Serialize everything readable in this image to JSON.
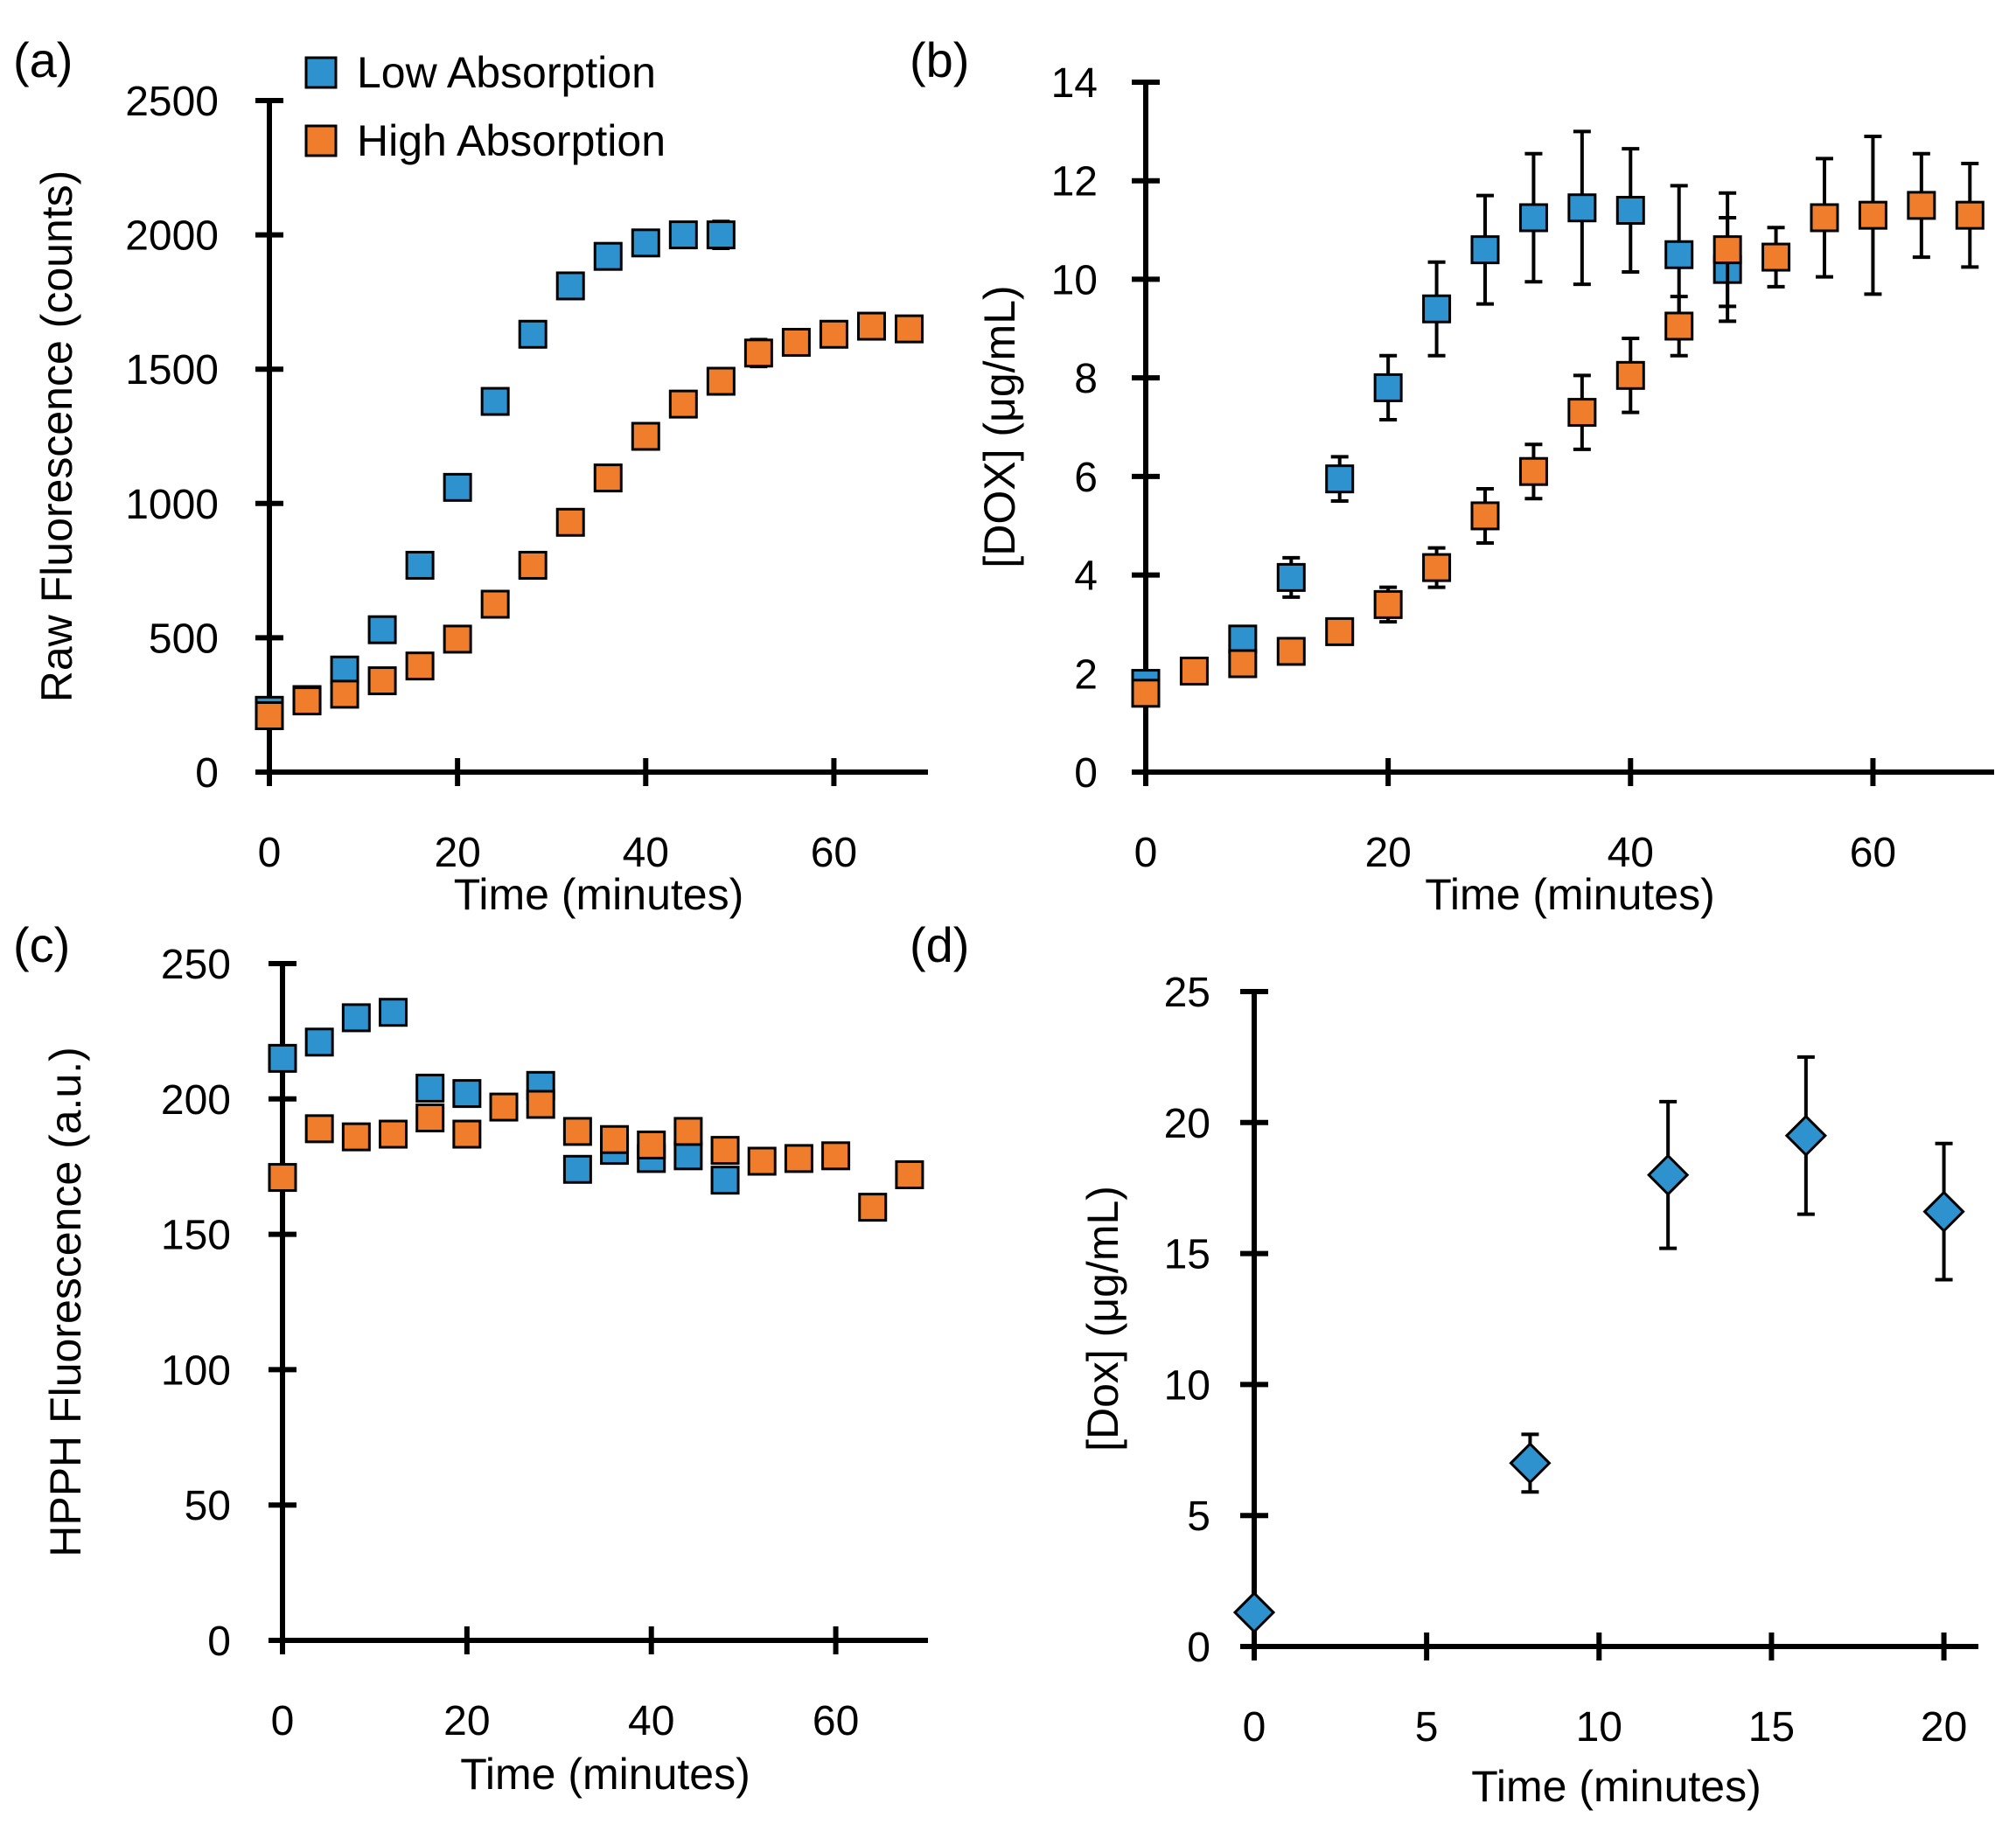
{
  "colors": {
    "low": "#2e92cf",
    "high": "#f07d2c",
    "diamond": "#2e92cf",
    "axis": "#000000",
    "marker_edge": "#000000"
  },
  "chart_data": [
    {
      "panel_label": "(a)",
      "type": "scatter",
      "xlabel": "Time (minutes)",
      "ylabel": "Raw Fluorescence (counts)",
      "xlim": [
        0,
        70
      ],
      "ylim": [
        0,
        2500
      ],
      "xticks": [
        0,
        20,
        40,
        60
      ],
      "yticks": [
        0,
        500,
        1000,
        1500,
        2000,
        2500
      ],
      "legend": {
        "placement": "top-left",
        "entries": [
          "Low Absorption",
          "High Absorption"
        ]
      },
      "series": [
        {
          "name": "Low Absorption",
          "color_key": "low",
          "x": [
            0,
            4,
            8,
            12,
            16,
            20,
            24,
            28,
            32,
            36,
            40,
            44,
            48
          ],
          "y": [
            230,
            270,
            380,
            530,
            770,
            1060,
            1380,
            1630,
            1810,
            1920,
            1970,
            2000,
            2000
          ],
          "err": [
            0,
            0,
            0,
            0,
            0,
            0,
            0,
            0,
            0,
            0,
            0,
            0,
            50
          ]
        },
        {
          "name": "High Absorption",
          "color_key": "high",
          "x": [
            0,
            4,
            8,
            12,
            16,
            20,
            24,
            28,
            32,
            36,
            40,
            44,
            48,
            52,
            56,
            60,
            64,
            68
          ],
          "y": [
            210,
            265,
            290,
            340,
            395,
            495,
            625,
            770,
            930,
            1095,
            1250,
            1370,
            1455,
            1560,
            1600,
            1630,
            1660,
            1650
          ],
          "err": [
            0,
            0,
            0,
            0,
            0,
            0,
            0,
            0,
            0,
            0,
            0,
            0,
            40,
            50,
            40,
            0,
            0,
            0
          ]
        }
      ]
    },
    {
      "panel_label": "(b)",
      "type": "scatter",
      "xlabel": "Time (minutes)",
      "ylabel": "[DOX] (μg/mL)",
      "xlim": [
        0,
        70
      ],
      "ylim": [
        0,
        14
      ],
      "xticks": [
        0,
        20,
        40,
        60
      ],
      "yticks": [
        0,
        2,
        4,
        6,
        8,
        10,
        12,
        14
      ],
      "series": [
        {
          "name": "Low Absorption",
          "color_key": "low",
          "x": [
            0,
            8,
            12,
            16,
            20,
            24,
            28,
            32,
            36,
            40,
            44,
            48
          ],
          "y": [
            1.8,
            2.7,
            3.95,
            5.95,
            7.8,
            9.4,
            10.6,
            11.25,
            11.45,
            11.4,
            10.5,
            10.2
          ],
          "err": [
            0.1,
            0.2,
            0.4,
            0.45,
            0.65,
            0.95,
            1.1,
            1.3,
            1.55,
            1.25,
            1.4,
            1.05
          ]
        },
        {
          "name": "High Absorption",
          "color_key": "high",
          "x": [
            0,
            4,
            8,
            12,
            16,
            20,
            24,
            28,
            32,
            36,
            40,
            44,
            48,
            52,
            56,
            60,
            64,
            68
          ],
          "y": [
            1.6,
            2.05,
            2.2,
            2.45,
            2.85,
            3.4,
            4.15,
            5.2,
            6.1,
            7.3,
            8.05,
            9.05,
            10.6,
            10.45,
            11.25,
            11.3,
            11.5,
            11.3
          ],
          "err": [
            0.1,
            0.15,
            0.2,
            0.2,
            0.25,
            0.35,
            0.4,
            0.55,
            0.55,
            0.75,
            0.75,
            0.6,
            1.15,
            0.6,
            1.2,
            1.6,
            1.05,
            1.05
          ]
        }
      ]
    },
    {
      "panel_label": "(c)",
      "type": "scatter",
      "xlabel": "Time (minutes)",
      "ylabel": "HPPH Fluorescence (a.u.)",
      "xlim": [
        0,
        70
      ],
      "ylim": [
        0,
        250
      ],
      "xticks": [
        0,
        20,
        40,
        60
      ],
      "yticks": [
        0,
        50,
        100,
        150,
        200,
        250
      ],
      "series": [
        {
          "name": "Low Absorption",
          "color_key": "low",
          "x": [
            0,
            4,
            8,
            12,
            16,
            20,
            28,
            32,
            36,
            40,
            44,
            48
          ],
          "y": [
            215,
            221,
            230,
            232,
            204,
            202,
            205,
            174,
            181,
            178,
            179,
            170
          ]
        },
        {
          "name": "High Absorption",
          "color_key": "high",
          "x": [
            0,
            4,
            8,
            12,
            16,
            20,
            24,
            28,
            32,
            36,
            40,
            44,
            48,
            52,
            56,
            60,
            64,
            68
          ],
          "y": [
            171,
            189,
            186,
            187,
            193,
            187,
            197,
            198,
            188,
            185,
            183,
            188,
            181,
            177,
            178,
            179,
            160,
            172
          ]
        }
      ]
    },
    {
      "panel_label": "(d)",
      "type": "scatter",
      "xlabel": "Time (minutes)",
      "ylabel": "[Dox] (μg/mL)",
      "xlim": [
        0,
        21
      ],
      "ylim": [
        0,
        25
      ],
      "xticks": [
        0,
        5,
        10,
        15,
        20
      ],
      "yticks": [
        0,
        5,
        10,
        15,
        20,
        25
      ],
      "series": [
        {
          "name": "Dox",
          "color_key": "diamond",
          "marker": "diamond",
          "x": [
            0,
            8,
            12,
            16,
            20
          ],
          "y": [
            1.3,
            7.0,
            18.0,
            19.5,
            16.6
          ],
          "err": [
            0,
            1.1,
            2.8,
            3.0,
            2.6
          ]
        }
      ]
    }
  ]
}
